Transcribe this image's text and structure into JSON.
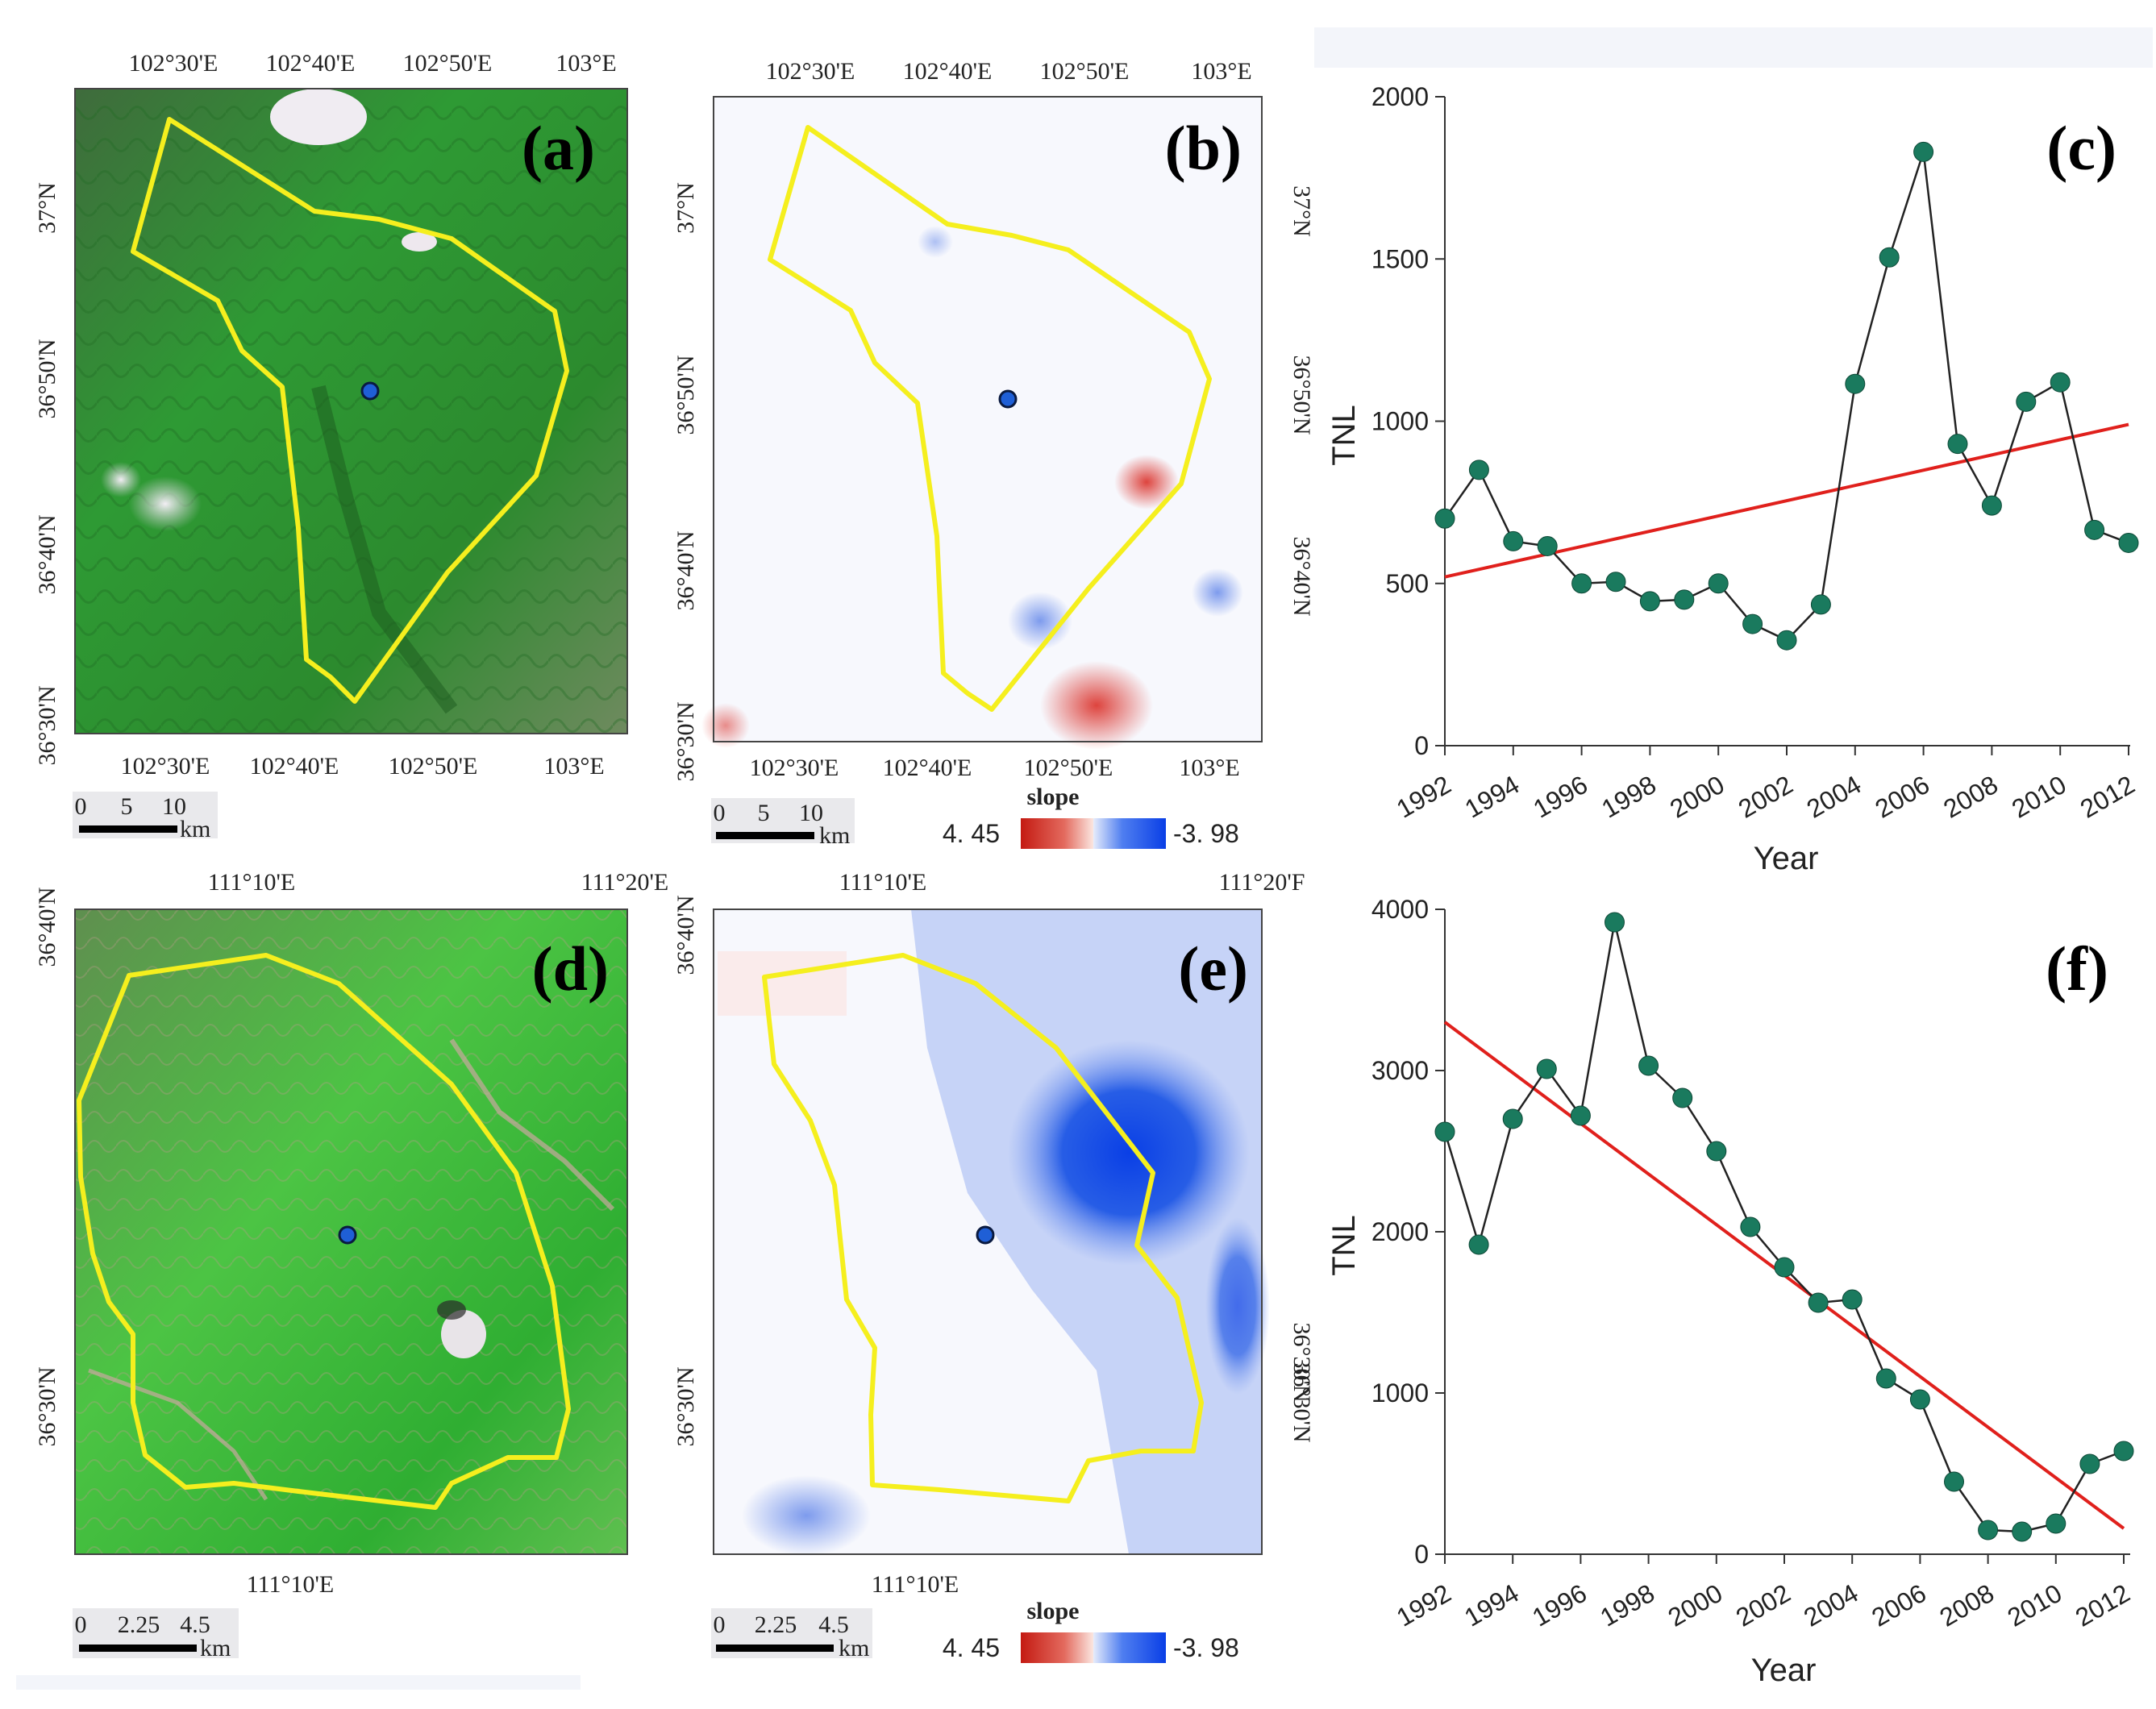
{
  "colors": {
    "boundary": "#f5ef1e",
    "site_fill": "#1f5fd6",
    "trend": "#e0201c",
    "marker": "#1a7a5e",
    "line": "#222222",
    "neg_slope": "#1a4fe0",
    "pos_slope": "#d9241c",
    "veg_dark": "#2f8a2f",
    "veg_light": "#56d24a"
  },
  "maps": {
    "a": {
      "label": "(a)",
      "top_ticks": [
        "102°30'E",
        "102°40'E",
        "102°50'E",
        "103°E"
      ],
      "bottom_ticks": [
        "102°30'E",
        "102°40'E",
        "102°50'E",
        "103°E"
      ],
      "left_ticks": [
        "37°N",
        "36°50'N",
        "36°40'N",
        "36°30'N"
      ]
    },
    "b": {
      "label": "(b)",
      "top_ticks": [
        "102°30'E",
        "102°40'E",
        "102°50'E",
        "103°E"
      ],
      "bottom_ticks": [
        "102°30'E",
        "102°40'E",
        "102°50'E",
        "103°E"
      ],
      "left_ticks": [
        "37°N",
        "36°50'N",
        "36°40'N",
        "36°30'N"
      ],
      "right_ticks": [
        "37°N",
        "36°50'N",
        "36°40'N"
      ]
    },
    "d": {
      "label": "(d)",
      "top_ticks": [
        "111°10'E",
        "111°20'E"
      ],
      "bottom_ticks": [
        "111°10'E"
      ],
      "left_ticks": [
        "36°40'N",
        "36°30'N"
      ]
    },
    "e": {
      "label": "(e)",
      "top_ticks": [
        "111°10'E",
        "111°20'F"
      ],
      "bottom_ticks": [
        "111°10'E"
      ],
      "left_ticks": [
        "36°40'N",
        "36°30'N"
      ],
      "right_ticks": [
        "36°30'N",
        "36°30'N"
      ]
    }
  },
  "scalebars": {
    "top": {
      "ticks": [
        "0",
        "5",
        "10"
      ],
      "unit": "km"
    },
    "bottom": {
      "ticks": [
        "0",
        "2.25",
        "4.5"
      ],
      "unit": "km"
    }
  },
  "legends": {
    "title": "slope",
    "max": "4. 45",
    "min": "-3. 98"
  },
  "chart_data": [
    {
      "type": "line",
      "panel": "(c)",
      "title": "",
      "xlabel": "Year",
      "ylabel": "TNL",
      "xlim": [
        1992,
        2012
      ],
      "ylim": [
        0,
        2000
      ],
      "xticks": [
        "1992",
        "1994",
        "1996",
        "1998",
        "2000",
        "2002",
        "2004",
        "2006",
        "2008",
        "2010",
        "2012"
      ],
      "yticks": [
        "0",
        "500",
        "1000",
        "1500",
        "2000"
      ],
      "x": [
        1992,
        1993,
        1994,
        1995,
        1996,
        1997,
        1998,
        1999,
        2000,
        2001,
        2002,
        2003,
        2004,
        2005,
        2006,
        2007,
        2008,
        2009,
        2010,
        2011,
        2012
      ],
      "series": [
        {
          "name": "TNL",
          "values": [
            700,
            850,
            630,
            615,
            500,
            505,
            445,
            450,
            500,
            375,
            325,
            435,
            1115,
            1505,
            1830,
            930,
            740,
            1060,
            1120,
            665,
            625
          ]
        }
      ],
      "trend": {
        "start": [
          1992,
          520
        ],
        "end": [
          2012,
          990
        ]
      }
    },
    {
      "type": "line",
      "panel": "(f)",
      "title": "",
      "xlabel": "Year",
      "ylabel": "TNL",
      "xlim": [
        1992,
        2012
      ],
      "ylim": [
        0,
        4000
      ],
      "xticks": [
        "1992",
        "1994",
        "1996",
        "1998",
        "2000",
        "2002",
        "2004",
        "2006",
        "2008",
        "2010",
        "2012"
      ],
      "yticks": [
        "0",
        "1000",
        "2000",
        "3000",
        "4000"
      ],
      "x": [
        1992,
        1993,
        1994,
        1995,
        1996,
        1997,
        1998,
        1999,
        2000,
        2001,
        2002,
        2003,
        2004,
        2005,
        2006,
        2007,
        2008,
        2009,
        2010,
        2011,
        2012
      ],
      "series": [
        {
          "name": "TNL",
          "values": [
            2620,
            1920,
            2700,
            3010,
            2720,
            3920,
            3030,
            2830,
            2500,
            2030,
            1780,
            1560,
            1580,
            1090,
            960,
            450,
            150,
            140,
            190,
            560,
            640
          ]
        }
      ],
      "trend": {
        "start": [
          1992,
          3300
        ],
        "end": [
          2012,
          160
        ]
      }
    }
  ]
}
